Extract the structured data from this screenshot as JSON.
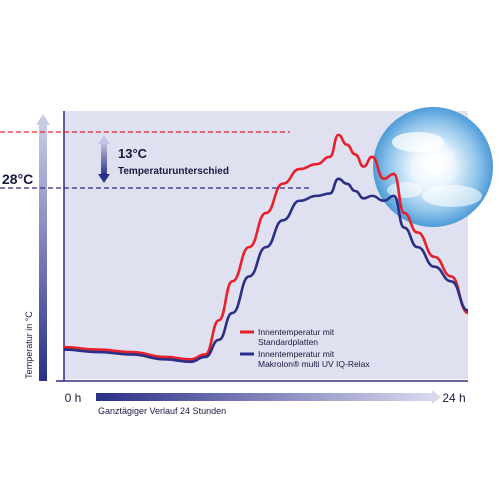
{
  "chart_data": {
    "type": "line",
    "ylabel": "Temperatur in °C",
    "xlabel": "Ganztägiger Verlauf 24 Stunden",
    "x_start_label": "0 h",
    "x_end_label": "24 h",
    "xlim": [
      0,
      24
    ],
    "ylim": [
      0,
      100
    ],
    "y_reference_label": "28°C",
    "difference_value": "13°C",
    "difference_label": "Temperaturunterschied",
    "series": [
      {
        "name": "Innentemperatur mit Standardplatten",
        "color": "#e8202a",
        "x": [
          0,
          2,
          4,
          6,
          7.5,
          8.4,
          9.2,
          10,
          11,
          12,
          13,
          14,
          15,
          15.8,
          16.3,
          16.8,
          17.3,
          17.8,
          18.3,
          19,
          19.6,
          20.2,
          21,
          22,
          23,
          24
        ],
        "y": [
          11,
          10,
          9,
          7,
          6,
          8,
          22,
          38,
          52,
          66,
          78,
          84,
          86,
          89,
          98,
          94,
          90,
          85,
          89,
          80,
          82,
          66,
          58,
          48,
          40,
          25
        ]
      },
      {
        "name": "Innentemperatur mit Makrolon® multi UV IQ-Relax",
        "color": "#2a2f87",
        "x": [
          0,
          2,
          4,
          6,
          7.5,
          8.4,
          9.2,
          10,
          11,
          12,
          13,
          14,
          15,
          15.8,
          16.3,
          16.8,
          17.3,
          17.8,
          18.3,
          19,
          19.6,
          20.2,
          21,
          22,
          23,
          24
        ],
        "y": [
          10,
          9,
          8,
          6,
          5,
          7,
          14,
          25,
          40,
          52,
          63,
          71,
          73,
          74,
          80,
          78,
          75,
          72,
          73,
          71,
          73,
          60,
          52,
          44,
          38,
          26
        ]
      }
    ],
    "legend_position": "bottom-right",
    "grid": false
  },
  "colors": {
    "plot_background": "#dfe0f0",
    "axis": "#2a2f87",
    "red_line": "#e8202a",
    "blue_line": "#2a2f87"
  },
  "icons": [
    "sky-sun-image",
    "double-arrow-icon"
  ]
}
